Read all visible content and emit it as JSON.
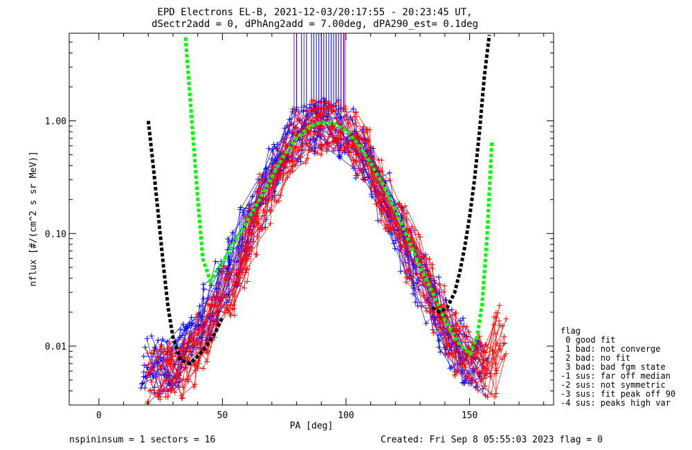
{
  "chart_data": {
    "type": "line",
    "title": "EPD Electrons EL-B, 2021-12-03/20:17:55 - 20:23:45 UT,",
    "subtitle": "dSectr2add = 0, dPhAng2add = 7.00deg, dPA290_est=   0.1deg",
    "xlabel": "PA [deg]",
    "ylabel": "nflux [#/(cm^2 s sr MeV)]",
    "xlim": [
      -12,
      184
    ],
    "ylim": [
      0.003,
      6
    ],
    "y_scale": "log",
    "x_ticks": [
      0,
      50,
      100,
      150
    ],
    "y_ticks": [
      {
        "value": 0.01,
        "label": "0.01"
      },
      {
        "value": 0.1,
        "label": "0.10"
      },
      {
        "value": 1.0,
        "label": "1.00"
      }
    ],
    "colors": {
      "blue": "#0000ff",
      "red": "#ff0000",
      "green": "#00ff00",
      "black": "#000000"
    },
    "series": [
      {
        "color": "#0000ff",
        "style": "solid-with-plus-markers",
        "x": [
          20,
          25,
          30,
          35,
          40,
          45,
          50,
          55,
          60,
          65,
          70,
          75,
          80,
          85,
          90,
          95,
          100,
          105,
          110,
          115,
          120,
          125,
          130,
          135,
          140,
          145,
          150,
          155
        ],
        "y": [
          0.007,
          0.0065,
          0.007,
          0.009,
          0.013,
          0.02,
          0.035,
          0.06,
          0.11,
          0.2,
          0.36,
          0.55,
          0.75,
          0.9,
          0.98,
          0.92,
          0.75,
          0.55,
          0.36,
          0.21,
          0.12,
          0.07,
          0.04,
          0.024,
          0.015,
          0.01,
          0.008,
          0.0065
        ]
      },
      {
        "color": "#ff0000",
        "style": "solid-with-plus-markers",
        "x": [
          22,
          27,
          32,
          37,
          42,
          47,
          52,
          57,
          62,
          67,
          72,
          77,
          82,
          87,
          92,
          97,
          102,
          107,
          112,
          117,
          122,
          127,
          132,
          137,
          142,
          147,
          152,
          158,
          162
        ],
        "y": [
          0.0055,
          0.006,
          0.006,
          0.0075,
          0.011,
          0.018,
          0.03,
          0.055,
          0.1,
          0.19,
          0.34,
          0.53,
          0.72,
          0.88,
          0.95,
          0.88,
          0.7,
          0.5,
          0.32,
          0.19,
          0.11,
          0.065,
          0.036,
          0.021,
          0.013,
          0.009,
          0.007,
          0.006,
          0.013
        ]
      },
      {
        "color": "#00ff00",
        "style": "dashed-fit",
        "x": [
          35,
          37,
          40,
          42,
          45,
          50,
          55,
          60,
          65,
          70,
          75,
          80,
          85,
          90,
          95,
          100,
          105,
          110,
          115,
          120,
          125,
          130,
          135,
          140,
          145,
          150,
          153,
          155,
          157,
          159
        ],
        "y": [
          5.5,
          1.5,
          0.2,
          0.06,
          0.038,
          0.055,
          0.085,
          0.13,
          0.2,
          0.32,
          0.5,
          0.7,
          0.88,
          0.97,
          0.95,
          0.82,
          0.62,
          0.42,
          0.27,
          0.16,
          0.09,
          0.05,
          0.03,
          0.017,
          0.011,
          0.0085,
          0.012,
          0.023,
          0.09,
          0.65
        ]
      },
      {
        "color": "#000000",
        "style": "dashed-fit",
        "x": [
          20,
          22,
          24,
          26,
          28,
          30,
          33,
          37,
          42,
          47,
          50
        ],
        "y": [
          1.0,
          0.4,
          0.15,
          0.055,
          0.022,
          0.012,
          0.0075,
          0.007,
          0.009,
          0.013,
          0.018
        ]
      },
      {
        "color": "#000000",
        "style": "dashed-fit",
        "x": [
          135,
          138,
          141,
          144,
          146,
          148,
          150,
          152,
          154,
          156,
          158
        ],
        "y": [
          0.022,
          0.02,
          0.022,
          0.03,
          0.045,
          0.075,
          0.14,
          0.3,
          0.8,
          2.5,
          5.8
        ]
      }
    ],
    "vertical_markers": {
      "blue": [
        80,
        82,
        84,
        86,
        87,
        88,
        89,
        90,
        91,
        92,
        93,
        94,
        95,
        96,
        97,
        98,
        99
      ],
      "red": [
        79,
        83,
        86,
        90,
        93,
        96,
        98,
        99.5
      ],
      "y_range": [
        1.2,
        6
      ]
    }
  },
  "legend": {
    "title": "flag",
    "items": [
      " 0 good fit",
      " 1 bad: not converge",
      " 2 bad: no fit",
      " 3 bad: bad fgm state",
      "-1 sus: far off median",
      "-2 sus: not symmetric",
      "-3 sus: fit peak off 90",
      "-4 sus: peaks high var"
    ]
  },
  "footer": {
    "left": "nspininsum =  1  sectors = 16",
    "right": "Created: Fri Sep  8 05:55:03 2023   flag = 0"
  }
}
